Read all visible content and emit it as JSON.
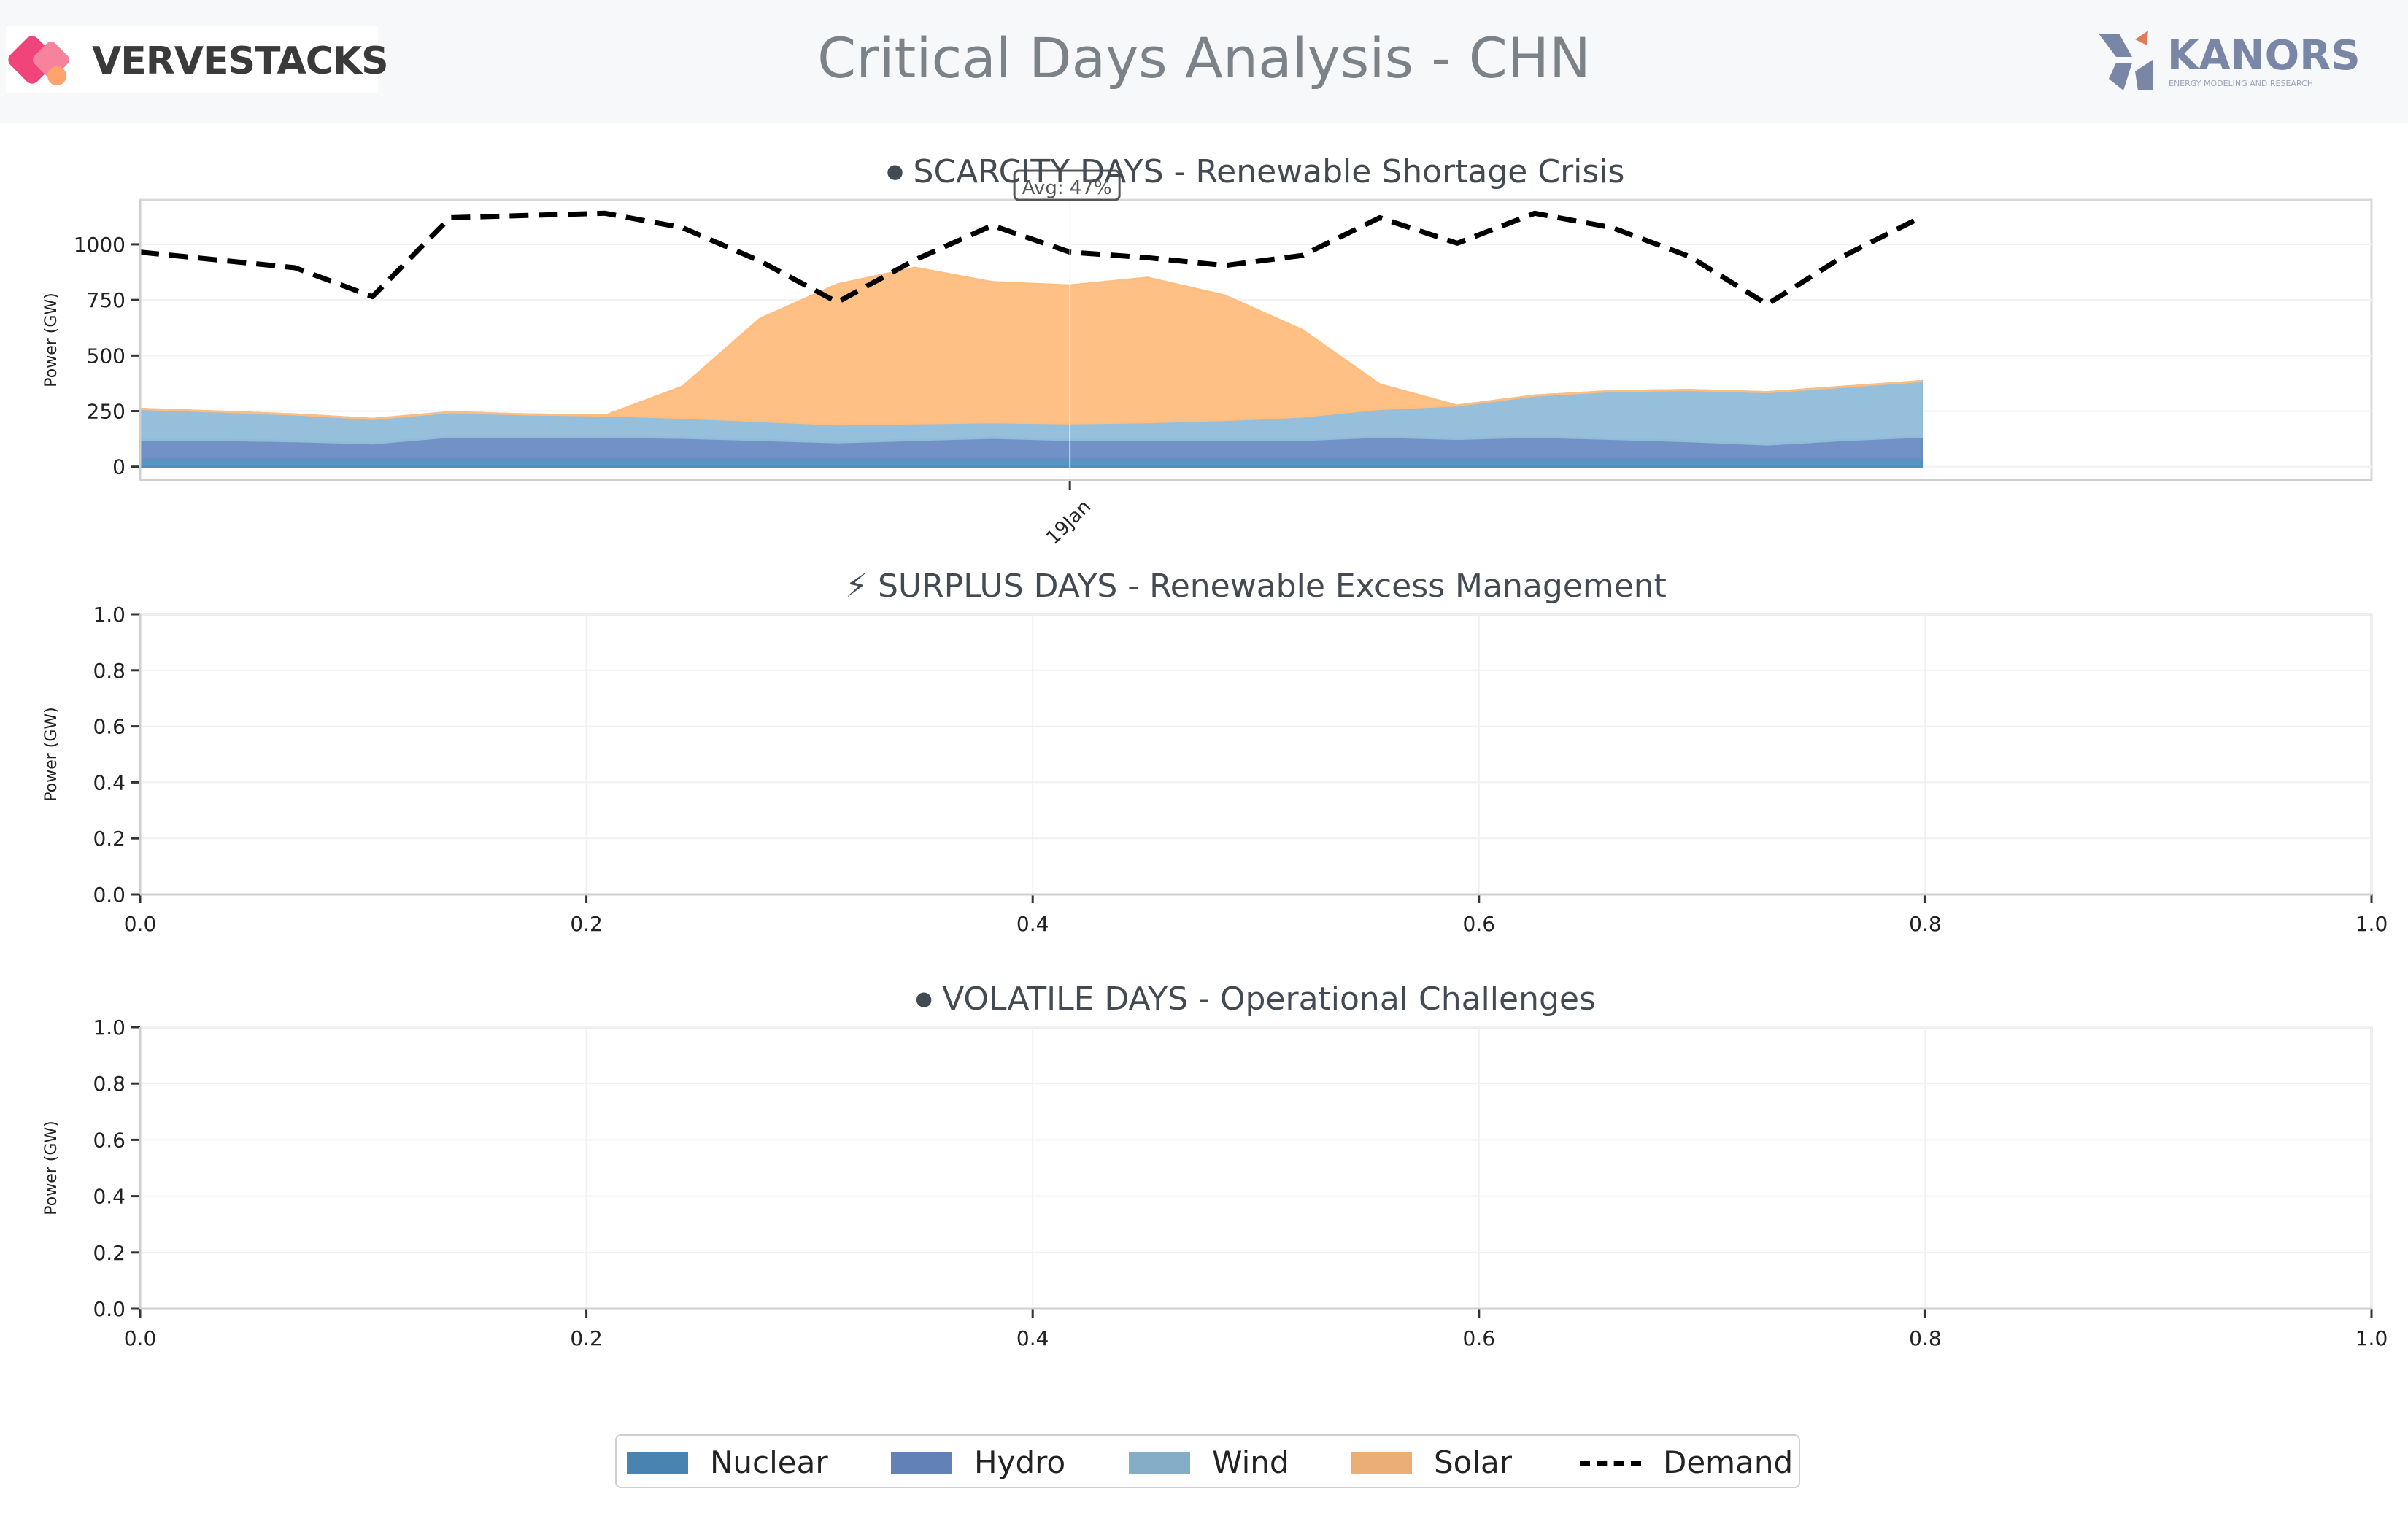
{
  "title": "Critical Days Analysis - CHN",
  "logos": {
    "left_text": "VERVESTACKS",
    "right_text": "KANORS",
    "right_tagline": "ENERGY MODELING AND RESEARCH"
  },
  "colors": {
    "nuclear": "#4f8fc0",
    "hydro": "#6a8cc4",
    "wind": "#8fbcd9",
    "solar": "#ffbd80",
    "demand": "#000000"
  },
  "legend": [
    {
      "key": "nuclear",
      "label": "Nuclear",
      "type": "area"
    },
    {
      "key": "hydro",
      "label": "Hydro",
      "type": "area"
    },
    {
      "key": "wind",
      "label": "Wind",
      "type": "area"
    },
    {
      "key": "solar",
      "label": "Solar",
      "type": "area"
    },
    {
      "key": "demand",
      "label": "Demand",
      "type": "line"
    }
  ],
  "chart_data": [
    {
      "type": "area",
      "title": "⏺ SCARCITY DAYS - Renewable Shortage Crisis",
      "ylabel": "Power (GW)",
      "xlabel": "",
      "ylim": [
        -60,
        1200
      ],
      "yticks": [
        0,
        250,
        500,
        750,
        1000
      ],
      "xticks": [
        {
          "label": "19Jan",
          "x": 12
        }
      ],
      "grid": true,
      "annotation": "Avg: 47%",
      "x": [
        0,
        1,
        2,
        3,
        4,
        5,
        6,
        7,
        8,
        9,
        10,
        11,
        12,
        13,
        14,
        15,
        16,
        17,
        18,
        19,
        20,
        21,
        22,
        23
      ],
      "series": [
        {
          "name": "Nuclear",
          "key": "nuclear",
          "values": [
            35,
            35,
            35,
            35,
            35,
            35,
            35,
            35,
            35,
            35,
            35,
            35,
            35,
            35,
            35,
            35,
            35,
            35,
            35,
            35,
            35,
            35,
            35,
            35
          ]
        },
        {
          "name": "Hydro",
          "key": "hydro",
          "values": [
            85,
            85,
            80,
            70,
            100,
            100,
            100,
            95,
            85,
            75,
            85,
            95,
            85,
            85,
            85,
            85,
            100,
            90,
            100,
            90,
            80,
            65,
            85,
            100
          ]
        },
        {
          "name": "Wind",
          "key": "wind",
          "values": [
            140,
            128,
            120,
            110,
            110,
            100,
            95,
            90,
            85,
            80,
            75,
            70,
            75,
            80,
            90,
            105,
            125,
            150,
            185,
            215,
            230,
            235,
            240,
            250
          ]
        },
        {
          "name": "Solar",
          "key": "solar",
          "values": [
            0,
            0,
            0,
            0,
            0,
            0,
            0,
            140,
            460,
            630,
            700,
            630,
            620,
            650,
            560,
            390,
            110,
            0,
            0,
            0,
            0,
            0,
            0,
            0
          ]
        }
      ],
      "demand": [
        965,
        930,
        895,
        765,
        1120,
        1130,
        1140,
        1075,
        925,
        740,
        930,
        1085,
        965,
        940,
        905,
        950,
        1120,
        1005,
        1140,
        1075,
        945,
        730,
        950,
        1125
      ]
    },
    {
      "type": "area",
      "title": "⚡ SURPLUS DAYS - Renewable Excess Management",
      "ylabel": "Power (GW)",
      "xlabel": "",
      "ylim": [
        0,
        1
      ],
      "xlim": [
        0,
        1
      ],
      "yticks": [
        0.0,
        0.2,
        0.4,
        0.6,
        0.8,
        1.0
      ],
      "xticks": [
        0.0,
        0.2,
        0.4,
        0.6,
        0.8,
        1.0
      ],
      "grid": true,
      "series": []
    },
    {
      "type": "area",
      "title": "⏺ VOLATILE DAYS - Operational Challenges",
      "ylabel": "Power (GW)",
      "xlabel": "",
      "ylim": [
        0,
        1
      ],
      "xlim": [
        0,
        1
      ],
      "yticks": [
        0.0,
        0.2,
        0.4,
        0.6,
        0.8,
        1.0
      ],
      "xticks": [
        0.0,
        0.2,
        0.4,
        0.6,
        0.8,
        1.0
      ],
      "grid": true,
      "series": []
    }
  ]
}
